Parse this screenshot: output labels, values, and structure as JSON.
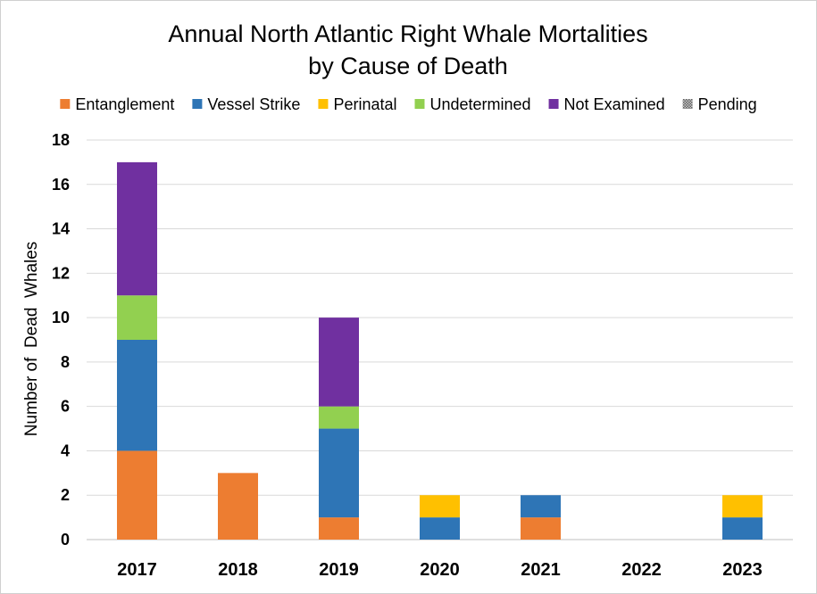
{
  "chart_data": {
    "type": "bar",
    "stacked": true,
    "title": "Annual North Atlantic Right Whale Mortalities by Cause of Death",
    "title_lines": [
      "Annual North Atlantic Right Whale Mortalities",
      "by Cause of Death"
    ],
    "xlabel": "",
    "ylabel": "Number of  Dead  Whales",
    "ylim": [
      0,
      18
    ],
    "yticks": [
      0,
      2,
      4,
      6,
      8,
      10,
      12,
      14,
      16,
      18
    ],
    "grid": true,
    "legend_position": "top",
    "categories": [
      "2017",
      "2018",
      "2019",
      "2020",
      "2021",
      "2022",
      "2023"
    ],
    "series": [
      {
        "name": "Entanglement",
        "color": "#ED7D31",
        "values": [
          4,
          3,
          1,
          0,
          1,
          0,
          0
        ]
      },
      {
        "name": "Vessel Strike",
        "color": "#2E75B6",
        "values": [
          5,
          0,
          4,
          1,
          1,
          0,
          1
        ]
      },
      {
        "name": "Perinatal",
        "color": "#FFC000",
        "values": [
          0,
          0,
          0,
          1,
          0,
          0,
          1
        ]
      },
      {
        "name": "Undetermined",
        "color": "#92D050",
        "values": [
          2,
          0,
          1,
          0,
          0,
          0,
          0
        ]
      },
      {
        "name": "Not Examined",
        "color": "#7030A0",
        "values": [
          6,
          0,
          4,
          0,
          0,
          0,
          0
        ]
      },
      {
        "name": "Pending",
        "color": "#808080",
        "pattern": "dotted",
        "values": [
          0,
          0,
          0,
          0,
          0,
          0,
          0
        ]
      }
    ]
  }
}
